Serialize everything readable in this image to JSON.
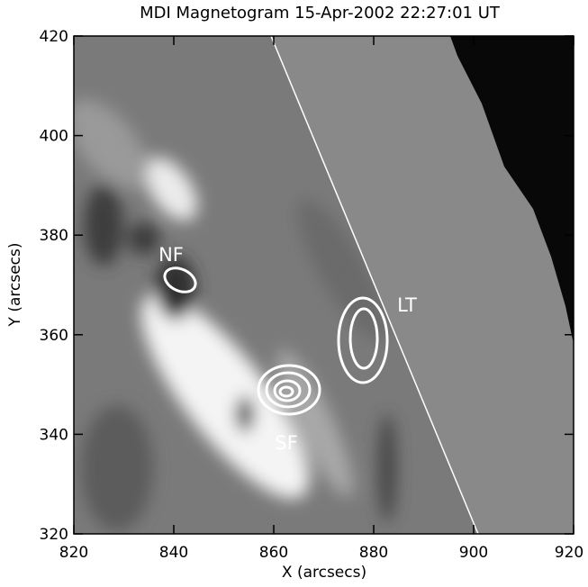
{
  "chart_data": {
    "type": "image",
    "title": "MDI Magnetogram 15-Apr-2002 22:27:01 UT",
    "x_label": "X (arcsecs)",
    "y_label": "Y (arcsecs)",
    "xlim": [
      820,
      920
    ],
    "xticks": [
      820,
      840,
      860,
      880,
      900,
      920
    ],
    "ylim": [
      320,
      420
    ],
    "yticks": [
      320,
      340,
      360,
      380,
      400,
      420
    ],
    "annotations": [
      "NF",
      "LT",
      "SF"
    ]
  }
}
